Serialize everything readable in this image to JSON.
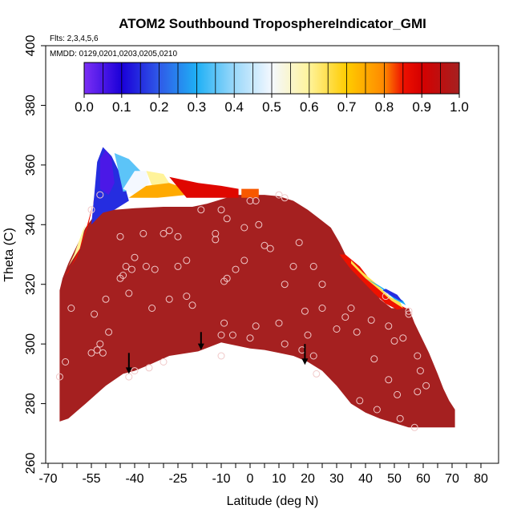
{
  "chart_data": {
    "type": "heatmap",
    "title": "ATOM2 Southbound TroposphereIndicator_GMI",
    "flights_label": "Flts: 2,3,4,5,6",
    "dates_label": "MMDD: 0129,0201,0203,0205,0210",
    "xlabel": "Latitude (deg N)",
    "ylabel": "Theta (C)",
    "xlim": [
      -70,
      80
    ],
    "ylim": [
      260,
      400
    ],
    "x_ticks": [
      -70,
      -65,
      -60,
      -55,
      -50,
      -45,
      -40,
      -35,
      -30,
      -25,
      -20,
      -15,
      -10,
      -5,
      0,
      5,
      10,
      15,
      20,
      25,
      30,
      35,
      40,
      45,
      50,
      55,
      60,
      65,
      70,
      75,
      80
    ],
    "x_tick_labels": [
      "-70",
      "",
      "",
      "-55",
      "",
      "",
      "-40",
      "",
      "",
      "-25",
      "",
      "",
      "-10",
      "",
      "0",
      "",
      "10",
      "",
      "20",
      "",
      "30",
      "",
      "40",
      "",
      "50",
      "",
      "60",
      "",
      "70",
      "",
      "80"
    ],
    "y_ticks": [
      260,
      280,
      300,
      320,
      340,
      360,
      380,
      400
    ],
    "y_tick_labels": [
      "260",
      "280",
      "300",
      "320",
      "340",
      "360",
      "380",
      "400"
    ],
    "colorbar": {
      "min": 0.0,
      "max": 1.0,
      "tick_values": [
        0.0,
        0.1,
        0.2,
        0.3,
        0.4,
        0.5,
        0.6,
        0.7,
        0.8,
        0.9,
        1.0
      ],
      "tick_labels": [
        "0.0",
        "0.1",
        "0.2",
        "0.3",
        "0.4",
        "0.5",
        "0.6",
        "0.7",
        "0.8",
        "0.9",
        "1.0"
      ],
      "stops": [
        [
          0.0,
          "#7b2ff5"
        ],
        [
          0.1,
          "#1a00d8"
        ],
        [
          0.2,
          "#2f5ae8"
        ],
        [
          0.3,
          "#1fb0f5"
        ],
        [
          0.4,
          "#9ad8fa"
        ],
        [
          0.5,
          "#f4f8ff"
        ],
        [
          0.6,
          "#fff39a"
        ],
        [
          0.7,
          "#ffcc00"
        ],
        [
          0.8,
          "#ff8800"
        ],
        [
          0.85,
          "#ee1100"
        ],
        [
          0.9,
          "#d50000"
        ],
        [
          1.0,
          "#a52020"
        ]
      ]
    },
    "fill_color": "#a52020",
    "tropo_region": [
      [
        -66,
        274
      ],
      [
        -63,
        275
      ],
      [
        -57,
        280
      ],
      [
        -50,
        286
      ],
      [
        -44,
        290
      ],
      [
        -40,
        291
      ],
      [
        -35,
        293
      ],
      [
        -28,
        296
      ],
      [
        -18,
        297.5
      ],
      [
        -10,
        300.5
      ],
      [
        -5,
        299.5
      ],
      [
        0,
        298.5
      ],
      [
        5,
        298
      ],
      [
        10,
        297
      ],
      [
        15,
        296
      ],
      [
        20,
        294
      ],
      [
        25,
        291
      ],
      [
        30,
        286
      ],
      [
        35,
        280
      ],
      [
        40,
        277
      ],
      [
        45,
        275
      ],
      [
        50,
        273.5
      ],
      [
        55,
        272
      ],
      [
        60,
        272
      ],
      [
        65,
        272
      ],
      [
        71,
        272
      ],
      [
        71,
        278
      ],
      [
        69,
        281
      ],
      [
        67,
        285
      ],
      [
        65,
        290
      ],
      [
        62,
        297
      ],
      [
        59,
        303
      ],
      [
        57,
        307
      ],
      [
        55,
        312
      ],
      [
        49,
        312
      ],
      [
        45,
        315
      ],
      [
        42,
        320
      ],
      [
        38,
        324
      ],
      [
        34,
        328
      ],
      [
        31,
        334
      ],
      [
        28,
        339
      ],
      [
        24,
        342
      ],
      [
        20,
        345
      ],
      [
        15,
        348
      ],
      [
        10,
        349.5
      ],
      [
        5,
        350
      ],
      [
        0,
        350
      ],
      [
        -5,
        350
      ],
      [
        -10,
        348.5
      ],
      [
        -15,
        347
      ],
      [
        -20,
        346
      ],
      [
        -30,
        346
      ],
      [
        -40,
        345.5
      ],
      [
        -47,
        345
      ],
      [
        -51,
        345
      ],
      [
        -54,
        343
      ],
      [
        -57,
        339
      ],
      [
        -60,
        333
      ],
      [
        -63,
        327
      ],
      [
        -65,
        322
      ],
      [
        -66,
        318
      ],
      [
        -66,
        274
      ]
    ],
    "colored_patches": [
      {
        "value": 0.85,
        "points": [
          [
            -64,
            323
          ],
          [
            -60,
            329
          ],
          [
            -56,
            340
          ],
          [
            -54,
            349
          ],
          [
            -53,
            352
          ],
          [
            -55,
            345
          ],
          [
            -57,
            338
          ],
          [
            -60,
            330
          ],
          [
            -63,
            324
          ]
        ]
      },
      {
        "value": 0.15,
        "points": [
          [
            -55,
            340
          ],
          [
            -54,
            350
          ],
          [
            -53,
            361
          ],
          [
            -51,
            366
          ],
          [
            -48,
            363
          ],
          [
            -44,
            355
          ],
          [
            -42,
            348
          ],
          [
            -47,
            345
          ],
          [
            -51,
            344
          ],
          [
            -53,
            342
          ]
        ]
      },
      {
        "value": 0.05,
        "points": [
          [
            -52,
            352
          ],
          [
            -52,
            362
          ],
          [
            -50,
            365
          ],
          [
            -48,
            362
          ],
          [
            -47,
            354
          ],
          [
            -49,
            350
          ]
        ]
      },
      {
        "value": 0.35,
        "points": [
          [
            -47,
            364
          ],
          [
            -42,
            362
          ],
          [
            -38,
            358
          ],
          [
            -40,
            352
          ],
          [
            -44,
            351
          ]
        ]
      },
      {
        "value": 0.5,
        "points": [
          [
            -44,
            352
          ],
          [
            -40,
            358
          ],
          [
            -36,
            358
          ],
          [
            -35,
            354
          ],
          [
            -40,
            350
          ]
        ]
      },
      {
        "value": 0.6,
        "points": [
          [
            -36,
            358
          ],
          [
            -30,
            357
          ],
          [
            -28,
            354
          ],
          [
            -34,
            353
          ]
        ]
      },
      {
        "value": 0.75,
        "points": [
          [
            -42,
            349
          ],
          [
            -36,
            353
          ],
          [
            -28,
            354
          ],
          [
            -22,
            352
          ],
          [
            -15,
            351
          ],
          [
            -22,
            350
          ],
          [
            -32,
            349
          ]
        ]
      },
      {
        "value": 0.88,
        "points": [
          [
            -28,
            356
          ],
          [
            -18,
            354
          ],
          [
            -10,
            353
          ],
          [
            -4,
            352
          ],
          [
            -4,
            349
          ],
          [
            -12,
            349
          ],
          [
            -22,
            349
          ]
        ]
      },
      {
        "value": 0.82,
        "points": [
          [
            -3,
            352
          ],
          [
            3,
            352
          ],
          [
            3,
            349
          ],
          [
            -3,
            349
          ]
        ]
      },
      {
        "value": 0.6,
        "points": [
          [
            -63,
            326
          ],
          [
            -59,
            332
          ],
          [
            -57,
            340
          ],
          [
            -58,
            338
          ],
          [
            -61,
            330
          ]
        ]
      },
      {
        "value": 0.85,
        "points": [
          [
            33,
            330
          ],
          [
            38,
            326
          ],
          [
            42,
            321
          ],
          [
            45,
            318
          ],
          [
            50,
            314
          ],
          [
            54,
            312
          ],
          [
            51,
            311.5
          ],
          [
            47,
            313.5
          ],
          [
            43,
            317
          ],
          [
            39,
            321
          ],
          [
            35,
            325
          ],
          [
            31,
            330
          ]
        ]
      },
      {
        "value": 0.65,
        "points": [
          [
            35,
            327
          ],
          [
            40,
            322
          ],
          [
            45,
            318
          ],
          [
            49,
            314.5
          ],
          [
            53,
            312
          ],
          [
            52,
            314
          ],
          [
            48,
            316
          ],
          [
            44,
            320
          ],
          [
            39,
            324
          ],
          [
            35,
            328
          ]
        ]
      },
      {
        "value": 0.3,
        "points": [
          [
            40,
            322
          ],
          [
            45,
            319
          ],
          [
            50,
            315
          ],
          [
            54,
            313
          ],
          [
            53,
            314.5
          ],
          [
            49,
            317
          ],
          [
            44,
            320
          ]
        ]
      },
      {
        "value": 0.15,
        "points": [
          [
            46,
            318
          ],
          [
            50,
            315.5
          ],
          [
            53,
            314
          ],
          [
            51,
            316.5
          ],
          [
            47,
            318.5
          ]
        ]
      }
    ],
    "observation_points": [
      [
        -66,
        289
      ],
      [
        -64,
        294
      ],
      [
        -62,
        312
      ],
      [
        -55,
        297
      ],
      [
        -53,
        298
      ],
      [
        -52,
        300
      ],
      [
        -51,
        297
      ],
      [
        -49,
        304
      ],
      [
        -50,
        315
      ],
      [
        -54,
        310
      ],
      [
        -55,
        345
      ],
      [
        -52,
        350
      ],
      [
        -45,
        336
      ],
      [
        -44,
        323
      ],
      [
        -45,
        322
      ],
      [
        -43,
        326
      ],
      [
        -42,
        317
      ],
      [
        -41,
        325
      ],
      [
        -40,
        329
      ],
      [
        -36,
        326
      ],
      [
        -34,
        312
      ],
      [
        -33,
        325
      ],
      [
        -30,
        337
      ],
      [
        -28,
        315
      ],
      [
        -25,
        326
      ],
      [
        -22,
        316
      ],
      [
        -22,
        328
      ],
      [
        -20,
        313
      ],
      [
        -17,
        345
      ],
      [
        -25,
        336
      ],
      [
        -30,
        294
      ],
      [
        -35,
        292
      ],
      [
        -40,
        291
      ],
      [
        -42,
        289
      ],
      [
        -28,
        338
      ],
      [
        -37,
        337
      ],
      [
        -12,
        337
      ],
      [
        -10,
        345
      ],
      [
        -8,
        342
      ],
      [
        -8,
        322
      ],
      [
        -9,
        307
      ],
      [
        -10,
        303
      ],
      [
        -9,
        321
      ],
      [
        -12,
        335
      ],
      [
        -2,
        339
      ],
      [
        0,
        348
      ],
      [
        2,
        348
      ],
      [
        3,
        340
      ],
      [
        -2,
        328
      ],
      [
        -5,
        325
      ],
      [
        0,
        302
      ],
      [
        -6,
        303
      ],
      [
        -10,
        296
      ],
      [
        2,
        306
      ],
      [
        10,
        307
      ],
      [
        12,
        300
      ],
      [
        18,
        298
      ],
      [
        20,
        303
      ],
      [
        22,
        296
      ],
      [
        23,
        290
      ],
      [
        25,
        320
      ],
      [
        25,
        312
      ],
      [
        19,
        311
      ],
      [
        12,
        320
      ],
      [
        15,
        326
      ],
      [
        17,
        334
      ],
      [
        22,
        326
      ],
      [
        5,
        333
      ],
      [
        7,
        332
      ],
      [
        10,
        350
      ],
      [
        12,
        349
      ],
      [
        30,
        305
      ],
      [
        33,
        309
      ],
      [
        35,
        312
      ],
      [
        37,
        304
      ],
      [
        42,
        308
      ],
      [
        43,
        295
      ],
      [
        47,
        316
      ],
      [
        48,
        306
      ],
      [
        50,
        301
      ],
      [
        53,
        302
      ],
      [
        55,
        311
      ],
      [
        58,
        296
      ],
      [
        59,
        291
      ],
      [
        58,
        284
      ],
      [
        61,
        286
      ],
      [
        51,
        283
      ],
      [
        48,
        288
      ],
      [
        52,
        275
      ],
      [
        57,
        272
      ],
      [
        38,
        281
      ],
      [
        44,
        278
      ],
      [
        55,
        310
      ]
    ],
    "arrows": [
      {
        "lat": -42,
        "theta_top": 297,
        "theta_bottom": 290
      },
      {
        "lat": -17,
        "theta_top": 304,
        "theta_bottom": 298
      },
      {
        "lat": 19,
        "theta_top": 300,
        "theta_bottom": 293
      }
    ]
  }
}
